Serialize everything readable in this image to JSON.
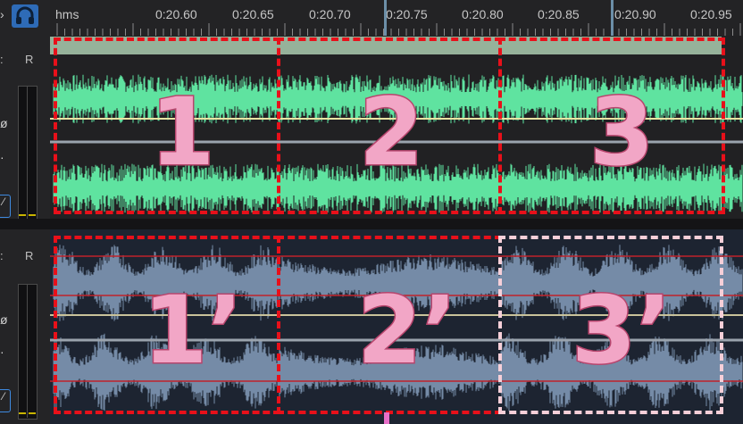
{
  "timeline": {
    "unit_label": "hms",
    "ticks": [
      "0:20.60",
      "0:20.65",
      "0:20.70",
      "0:20.75",
      "0:20.80",
      "0:20.85",
      "0:20.90",
      "0:20.95"
    ]
  },
  "track_header": {
    "channel_right_letter": "R"
  },
  "annotations": {
    "track1_segments": [
      "1",
      "2",
      "3"
    ],
    "track2_segments": [
      "1’",
      "2’",
      "3’"
    ]
  },
  "colors": {
    "track1_wave": "#5fe3a0",
    "track2_wave": "#7f97b5",
    "region_border": "#e8101a",
    "region_border_light": "#f6cfd8",
    "label_fill": "#f2a6c6"
  },
  "icons": {
    "monitor": "headphones-icon"
  }
}
